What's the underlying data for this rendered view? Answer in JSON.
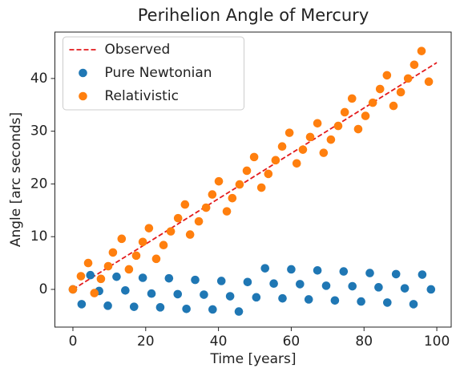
{
  "chart_data": {
    "type": "scatter",
    "title": "Perihelion Angle of Mercury",
    "x_label": "Time [years]",
    "y_label": "Angle [arc seconds]",
    "xlim": [
      -4.95,
      103.95
    ],
    "ylim": [
      -7.15,
      48.8
    ],
    "xticks": [
      0,
      20,
      40,
      60,
      80,
      100
    ],
    "yticks": [
      0,
      10,
      20,
      30,
      40
    ],
    "legend": "upper left",
    "series": [
      {
        "name": "Observed",
        "color": "#e31a1c",
        "style": "dashed-line",
        "x": [
          0,
          100
        ],
        "values": [
          0,
          43
        ]
      },
      {
        "name": "Pure Newtonian",
        "color": "#1f77b4",
        "style": "marker",
        "x": [
          0,
          2.4,
          4.8,
          7.2,
          9.6,
          12,
          14.4,
          16.8,
          19.2,
          21.6,
          24,
          26.4,
          28.8,
          31.2,
          33.6,
          36,
          38.4,
          40.8,
          43.2,
          45.6,
          48,
          50.4,
          52.8,
          55.2,
          57.6,
          60,
          62.4,
          64.8,
          67.2,
          69.6,
          72,
          74.4,
          76.8,
          79.2,
          81.6,
          84,
          86.4,
          88.8,
          91.2,
          93.6,
          96,
          98.4
        ],
        "values": [
          0,
          -2.8,
          2.7,
          -0.3,
          -3.1,
          2.4,
          -0.2,
          -3.3,
          2.2,
          -0.8,
          -3.4,
          2.1,
          -0.9,
          -3.7,
          1.8,
          -1.0,
          -3.8,
          1.6,
          -1.3,
          -4.2,
          1.4,
          -1.5,
          4.0,
          1.1,
          -1.7,
          3.8,
          1.0,
          -1.9,
          3.6,
          0.7,
          -2.1,
          3.4,
          0.6,
          -2.3,
          3.1,
          0.4,
          -2.5,
          2.9,
          0.2,
          -2.8,
          2.8,
          0
        ]
      },
      {
        "name": "Relativistic",
        "color": "#ff7f0e",
        "style": "marker",
        "x": [
          0,
          2.2,
          4.2,
          5.9,
          7.7,
          9.7,
          11,
          13.4,
          15.4,
          17.4,
          19.2,
          20.9,
          22.9,
          24.9,
          26.9,
          28.9,
          30.8,
          32.2,
          34.6,
          36.6,
          38.3,
          40.1,
          42.3,
          43.8,
          45.8,
          47.8,
          49.8,
          51.8,
          53.7,
          55.7,
          57.5,
          59.5,
          61.5,
          63.2,
          65.2,
          67.2,
          68.9,
          70.9,
          72.9,
          74.7,
          76.7,
          78.4,
          80.4,
          82.4,
          84.4,
          86.3,
          88.1,
          90.1,
          92.1,
          93.8,
          95.8,
          97.8
        ],
        "values": [
          0,
          2.5,
          5.0,
          -0.7,
          2.0,
          4.4,
          7.0,
          9.6,
          3.8,
          6.4,
          9.0,
          11.6,
          5.8,
          8.4,
          11.0,
          13.5,
          16.1,
          10.4,
          12.9,
          15.5,
          18.0,
          20.5,
          14.8,
          17.3,
          19.9,
          22.5,
          25.1,
          19.3,
          21.9,
          24.5,
          27.1,
          29.7,
          23.9,
          26.5,
          28.9,
          31.5,
          25.9,
          28.4,
          31.0,
          33.6,
          36.2,
          30.4,
          32.9,
          35.4,
          38.0,
          40.6,
          34.8,
          37.4,
          40.0,
          42.6,
          45.2,
          39.4
        ]
      }
    ]
  }
}
